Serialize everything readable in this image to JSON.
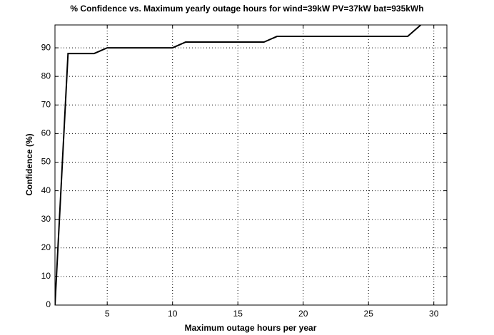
{
  "chart_data": {
    "type": "line",
    "title": "% Confidence vs. Maximum yearly outage hours for wind=39kW PV=37kW bat=935kWh",
    "x_label": "Maximum outage hours per year",
    "y_label": "Confidence (%)",
    "x": [
      1,
      2,
      4,
      5,
      10,
      11,
      17,
      18,
      28,
      29
    ],
    "series": [
      {
        "name": "Confidence",
        "color": "#000000",
        "values": [
          0,
          88,
          88,
          90,
          90,
          92,
          92,
          94,
          94,
          98
        ]
      }
    ],
    "xlim": [
      1,
      31
    ],
    "xticks": [
      5,
      10,
      15,
      20,
      25,
      30
    ],
    "ylim": [
      0,
      98
    ],
    "yticks": [
      0,
      10,
      20,
      30,
      40,
      50,
      60,
      70,
      80,
      90
    ],
    "grid": true
  }
}
